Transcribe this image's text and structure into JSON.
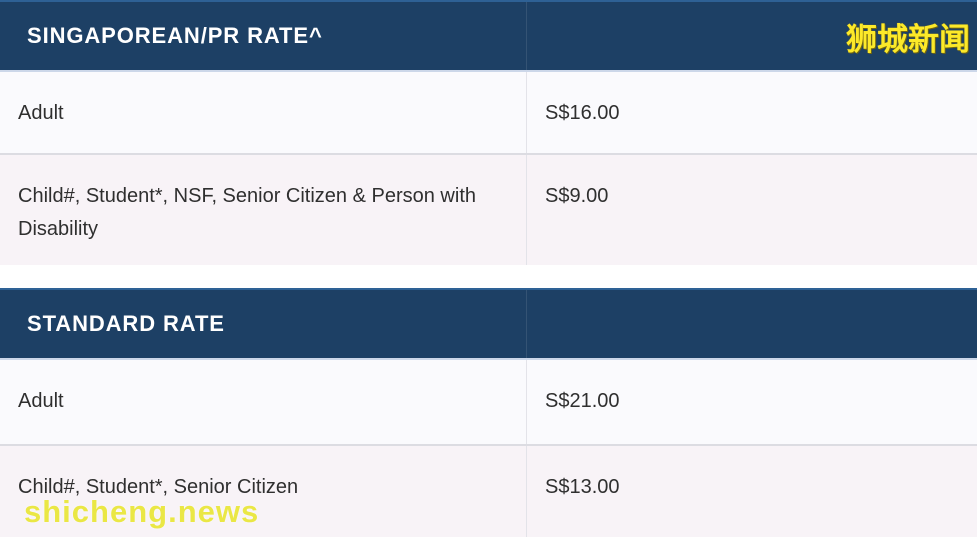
{
  "colors": {
    "header_bg": "#1d4065",
    "header_top_highlight": "#2e6195",
    "header_bottom_border": "#ccd7e9",
    "header_text": "#ffffff",
    "row_light_bg": "#fafafd",
    "row_pink_bg": "#f8f3f7",
    "row_divider": "#dcdce2",
    "column_divider": "#e3e3e9",
    "row_text": "#2f2f2f",
    "watermark_yellow": "#fce929"
  },
  "tables": [
    {
      "header": "SINGAPOREAN/PR RATE^",
      "rows": [
        {
          "label": "Adult",
          "price": "S$16.00"
        },
        {
          "label": "Child#, Student*, NSF, Senior Citizen & Person with Disability",
          "price": "S$9.00"
        }
      ]
    },
    {
      "header": "STANDARD RATE",
      "rows": [
        {
          "label": "Adult",
          "price": "S$21.00"
        },
        {
          "label": "Child#, Student*, Senior Citizen",
          "price": "S$13.00"
        }
      ]
    }
  ],
  "watermarks": {
    "top_right": "狮城新闻",
    "bottom_left": "shicheng.news"
  }
}
